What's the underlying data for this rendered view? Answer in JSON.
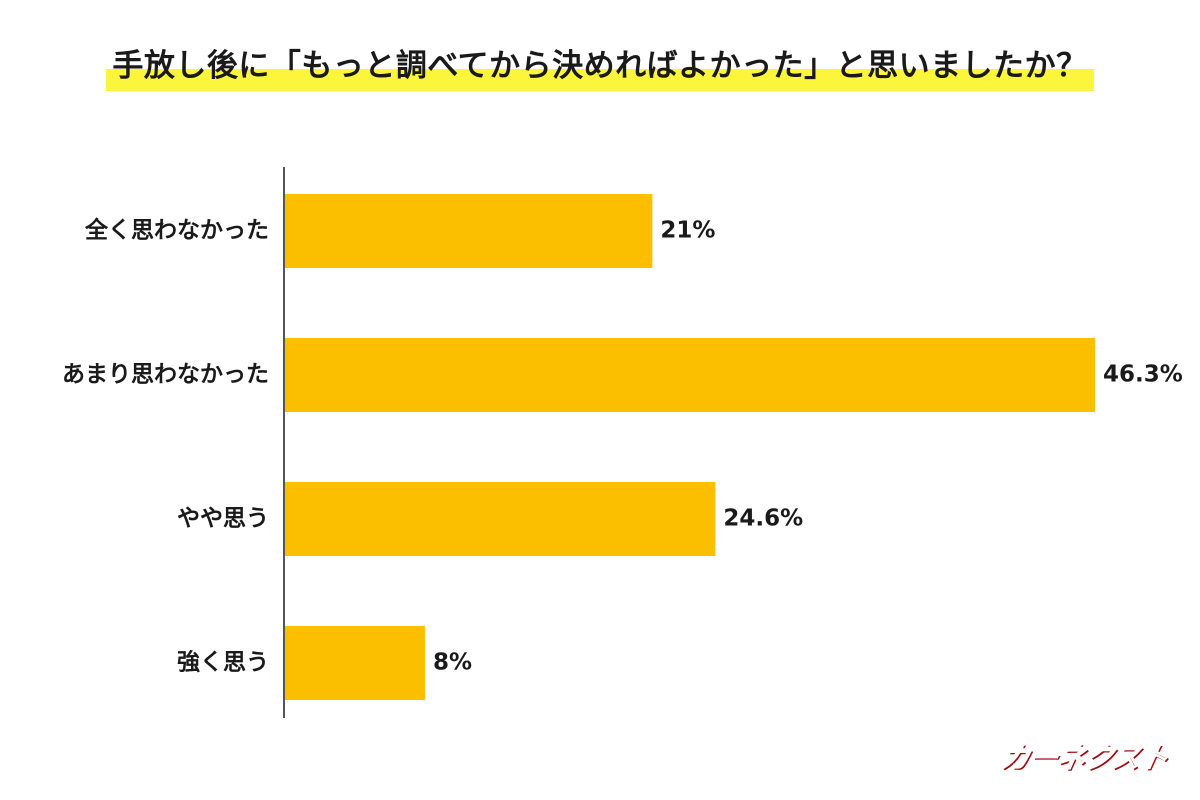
{
  "title": "手放し後に「もっと調べてから決めればよかった」と思いましたか？",
  "logo_text": "カーネクスト",
  "colors": {
    "bar": "#fbbf00",
    "title_highlight": "#fbf63c",
    "axis": "#555555",
    "logo": "#e8151b"
  },
  "chart_data": {
    "type": "bar",
    "orientation": "horizontal",
    "categories": [
      "全く思わなかった",
      "あまり思わなかった",
      "やや思う",
      "強く思う"
    ],
    "values": [
      21,
      46.3,
      24.6,
      8
    ],
    "value_labels": [
      "21%",
      "46.3%",
      "24.6%",
      "8%"
    ],
    "unit": "%",
    "title": "手放し後に「もっと調べてから決めればよかった」と思いましたか？",
    "xlabel": "",
    "ylabel": "",
    "xlim": [
      0,
      46.3
    ],
    "grid": false,
    "legend": "none"
  }
}
